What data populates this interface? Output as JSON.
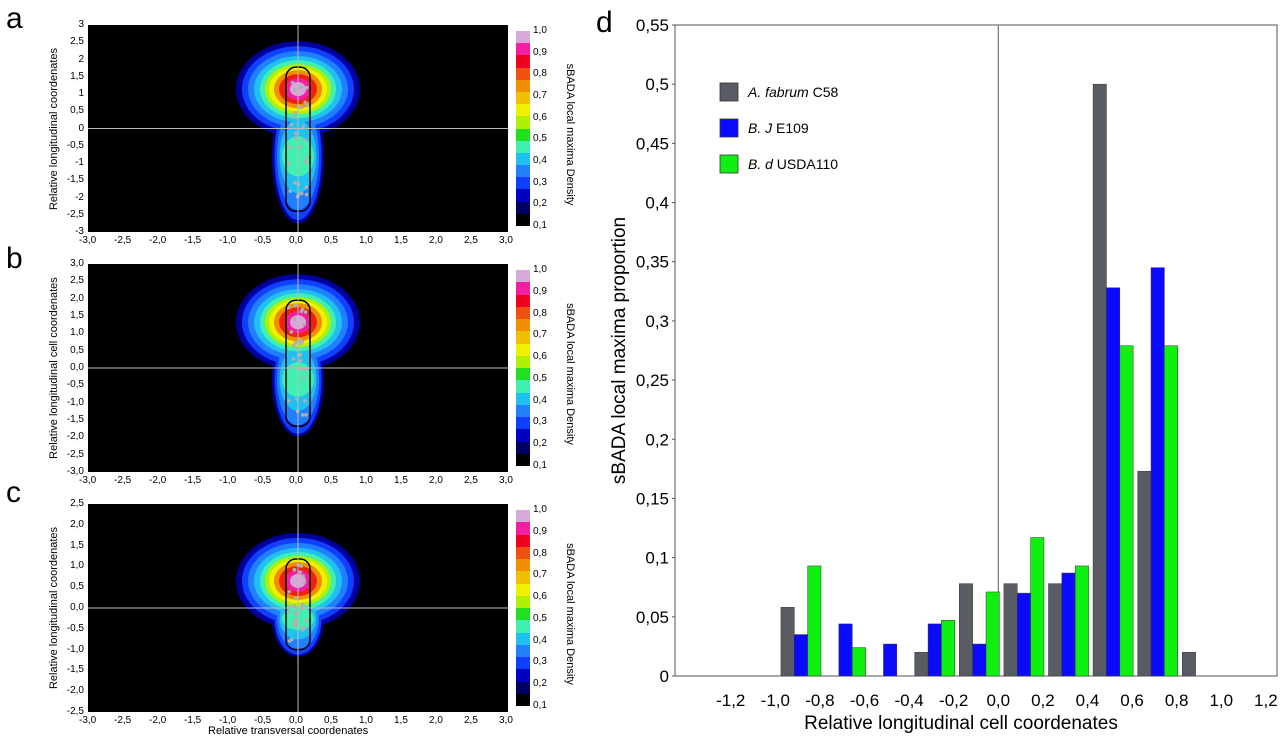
{
  "panels": {
    "a": {
      "label": "a",
      "ylabel": "Relative longitudinal coordenates",
      "xlabel": "",
      "yticks": [
        "3",
        "2,5",
        "2",
        "1,5",
        "1",
        "0,5",
        "0",
        "-0,5",
        "-1",
        "-1,5",
        "-2",
        "-2,5",
        "-3"
      ],
      "xticks": [
        "-3,0",
        "-2,5",
        "-2,0",
        "-1,5",
        "-1,0",
        "-0,5",
        "0,0",
        "0,5",
        "1,0",
        "1,5",
        "2,0",
        "2,5",
        "3,0"
      ],
      "cbar_label": "sBADA local maxima Density",
      "cbar_ticks": [
        "1,0",
        "0,9",
        "0,8",
        "0,7",
        "0,6",
        "0,5",
        "0,4",
        "0,3",
        "0,2",
        "0,1"
      ]
    },
    "b": {
      "label": "b",
      "ylabel": "Relative longitudinal cell coordenates",
      "xlabel": "",
      "yticks": [
        "3,0",
        "2,5",
        "2,0",
        "1,5",
        "1,0",
        "0,5",
        "0,0",
        "-0,5",
        "-1,0",
        "-1,5",
        "-2,0",
        "-2,5",
        "-3,0"
      ],
      "xticks": [
        "-3,0",
        "-2,5",
        "-2,0",
        "-1,5",
        "-1,0",
        "-0,5",
        "0,0",
        "0,5",
        "1,0",
        "1,5",
        "2,0",
        "2,5",
        "3,0"
      ],
      "cbar_label": "sBADA local maxima Density",
      "cbar_ticks": [
        "1,0",
        "0,9",
        "0,8",
        "0,7",
        "0,6",
        "0,5",
        "0,4",
        "0,3",
        "0,2",
        "0,1"
      ]
    },
    "c": {
      "label": "c",
      "ylabel": "Relative longitudinal coordenates",
      "xlabel": "Relative transversal coordenates",
      "yticks": [
        "2,5",
        "2,0",
        "1,5",
        "1,0",
        "0,5",
        "0,0",
        "-0,5",
        "-1,0",
        "-1,5",
        "-2,0",
        "-2,5"
      ],
      "xticks": [
        "-3,0",
        "-2,5",
        "-2,0",
        "-1,5",
        "-1,0",
        "-0,5",
        "0,0",
        "0,5",
        "1,0",
        "1,5",
        "2,0",
        "2,5",
        "3,0"
      ],
      "cbar_label": "sBADA local maxima Density",
      "cbar_ticks": [
        "1,0",
        "0,9",
        "0,8",
        "0,7",
        "0,6",
        "0,5",
        "0,4",
        "0,3",
        "0,2",
        "0,1"
      ]
    }
  },
  "colorbar_colors": [
    "#d8a8d8",
    "#f020a0",
    "#f00020",
    "#f05010",
    "#f09000",
    "#f0c000",
    "#f0f000",
    "#b0f000",
    "#20e020",
    "#40f0b0",
    "#20c0f0",
    "#2080ff",
    "#1040ff",
    "#0000c0",
    "#000060",
    "#000000"
  ],
  "chart_data": {
    "label": "d",
    "type": "bar",
    "xlabel": "Relative longitudinal cell coordenates",
    "ylabel": "sBADA local maxima proportion",
    "ylim": [
      0,
      0.55
    ],
    "yticks": [
      "0,55",
      "0,5",
      "0,45",
      "0,4",
      "0,35",
      "0,3",
      "0,25",
      "0,2",
      "0,15",
      "0,1",
      "0,05",
      "0"
    ],
    "xticks": [
      "-1,2",
      "-1,0",
      "-0,8",
      "-0,6",
      "-0,4",
      "-0,2",
      "0,0",
      "0,2",
      "0,4",
      "0,6",
      "0,8",
      "1,0",
      "1,2"
    ],
    "categories": [
      "-0,9",
      "-0,7",
      "-0,5",
      "-0,3",
      "-0,1",
      "0,1",
      "0,3",
      "0,5",
      "0,7",
      "0,9",
      "1,1"
    ],
    "series": [
      {
        "name_italic": "A.   fabrum",
        "name_rest": " C58",
        "color": "#595d63",
        "values": [
          0.058,
          0,
          0,
          0.02,
          0.078,
          0.078,
          0.078,
          0.5,
          0.173,
          0.02,
          0
        ]
      },
      {
        "name_italic": "B. J",
        "name_rest": " E109",
        "color": "#0a0aff",
        "values": [
          0.035,
          0.044,
          0.027,
          0.044,
          0.027,
          0.07,
          0.087,
          0.328,
          0.345,
          0,
          0
        ]
      },
      {
        "name_italic": "B. d",
        "name_rest": " USDA110",
        "color": "#10f010",
        "values": [
          0.093,
          0.024,
          0,
          0.047,
          0.071,
          0.117,
          0.093,
          0.279,
          0.279,
          0,
          0
        ]
      }
    ],
    "grid": false,
    "legend_position": "top-left"
  }
}
